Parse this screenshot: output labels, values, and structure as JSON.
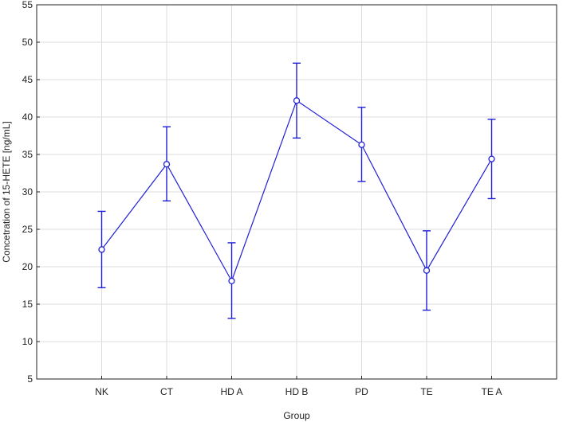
{
  "chart_data": {
    "type": "line",
    "title": "",
    "xlabel": "Group",
    "ylabel": "Concetration of 15-HETE [ng/mL]",
    "categories": [
      "NK",
      "CT",
      "HD A",
      "HD B",
      "PD",
      "TE",
      "TE A"
    ],
    "series": [
      {
        "values": [
          22.3,
          33.7,
          18.1,
          42.2,
          36.3,
          19.5,
          34.4
        ],
        "error_low": [
          17.2,
          28.8,
          13.1,
          37.2,
          31.4,
          14.2,
          29.1
        ],
        "error_high": [
          27.4,
          38.7,
          23.2,
          47.2,
          41.3,
          24.8,
          39.7
        ],
        "color": "#1f1fd6"
      }
    ],
    "ylim": [
      5,
      55
    ],
    "yticks": [
      5,
      10,
      15,
      20,
      25,
      30,
      35,
      40,
      45,
      50,
      55
    ],
    "grid": true,
    "legend": "none"
  }
}
